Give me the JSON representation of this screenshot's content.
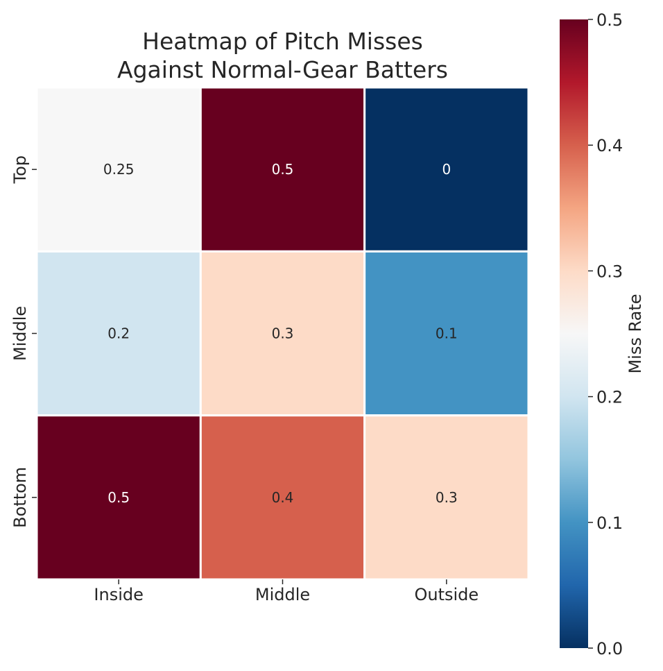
{
  "chart_data": {
    "type": "heatmap",
    "title_lines": [
      "Heatmap of Pitch Misses",
      "Against Normal-Gear Batters"
    ],
    "x_categories": [
      "Inside",
      "Middle",
      "Outside"
    ],
    "y_categories": [
      "Top",
      "Middle",
      "Bottom"
    ],
    "values": [
      [
        0.25,
        0.5,
        0.0
      ],
      [
        0.2,
        0.3,
        0.1
      ],
      [
        0.5,
        0.4,
        0.3
      ]
    ],
    "cell_labels": [
      [
        "0.25",
        "0.5",
        "0"
      ],
      [
        "0.2",
        "0.3",
        "0.1"
      ],
      [
        "0.5",
        "0.4",
        "0.3"
      ]
    ],
    "colorbar": {
      "label": "Miss Rate",
      "range": [
        0.0,
        0.5
      ],
      "ticks": [
        "0.0",
        "0.1",
        "0.2",
        "0.3",
        "0.4",
        "0.5"
      ],
      "colormap": "RdBu_r"
    },
    "colors": {
      "text_dark": "#262626",
      "text_light": "#ffffff",
      "cell_border": "#ffffff"
    }
  }
}
